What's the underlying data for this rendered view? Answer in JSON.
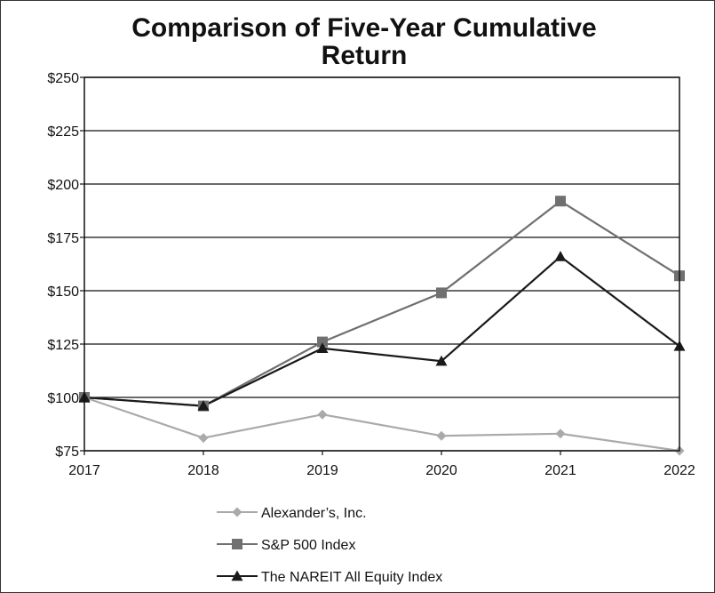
{
  "chart_data": {
    "type": "line",
    "title_line1": "Comparison of Five-Year Cumulative",
    "title_line2": "Return",
    "x": [
      "2017",
      "2018",
      "2019",
      "2020",
      "2021",
      "2022"
    ],
    "ylim": [
      75,
      250
    ],
    "yticks": [
      75,
      100,
      125,
      150,
      175,
      200,
      225,
      250
    ],
    "ytick_labels": [
      "$75",
      "$100",
      "$125",
      "$150",
      "$175",
      "$200",
      "$225",
      "$250"
    ],
    "grid": true,
    "legend_position": "bottom",
    "series": [
      {
        "name": "Alexander’s, Inc.",
        "values": [
          100,
          81,
          92,
          82,
          83,
          75
        ],
        "color": "#aaaaaa",
        "marker": "diamond"
      },
      {
        "name": "S&P 500 Index",
        "values": [
          100,
          96,
          126,
          149,
          192,
          157
        ],
        "color": "#707070",
        "marker": "square"
      },
      {
        "name": "The NAREIT All Equity Index",
        "values": [
          100,
          96,
          123,
          117,
          166,
          124
        ],
        "color": "#1a1a1a",
        "marker": "triangle"
      }
    ]
  }
}
